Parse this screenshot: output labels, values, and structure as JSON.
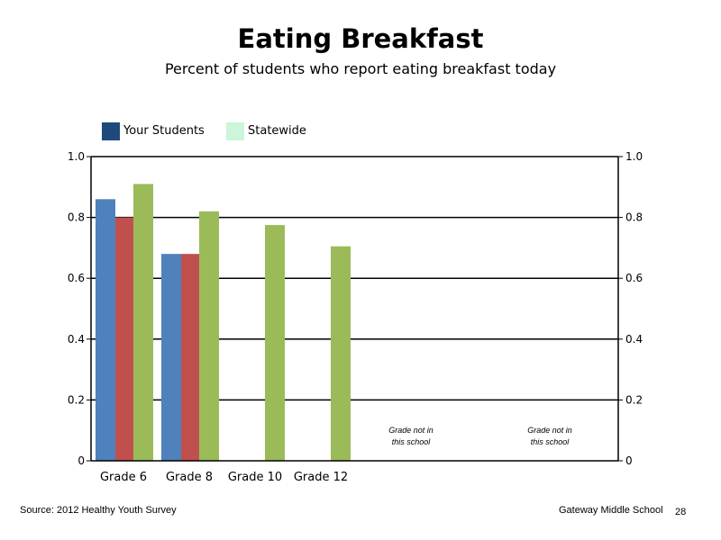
{
  "chart_data": {
    "type": "bar",
    "title": "Eating Breakfast",
    "subtitle": "Percent of students who report eating breakfast today",
    "categories": [
      "Grade 6",
      "Grade 8",
      "Grade 10",
      "Grade 12"
    ],
    "series": [
      {
        "name": "Your Students",
        "values": [
          0.86,
          0.68,
          null,
          null
        ],
        "color": "#4F81BD"
      },
      {
        "name": "",
        "values": [
          0.8,
          0.68,
          null,
          null
        ],
        "color": "#C0504D"
      },
      {
        "name": "Statewide",
        "values": [
          0.91,
          0.82,
          0.775,
          0.705
        ],
        "color": "#9BBB59"
      }
    ],
    "ylim": [
      0,
      1.0
    ],
    "yticks": [
      "0",
      "0.2",
      "0.4",
      "0.6",
      "0.8",
      "1.0"
    ],
    "ytick_values": [
      0,
      0.2,
      0.4,
      0.6,
      0.8,
      1.0
    ],
    "secondary_yaxis": true,
    "grid": true,
    "legend_position": "top-left",
    "notes": [
      {
        "line1": "Grade not in",
        "line2": "this school"
      },
      {
        "line1": "Grade not in",
        "line2": "this school"
      }
    ]
  },
  "legend": [
    {
      "label": "Your Students",
      "color": "#1F497D"
    },
    {
      "label": "Statewide",
      "color": "#CCF5D9"
    }
  ],
  "footer": {
    "source": "Source: 2012 Healthy Youth Survey",
    "school": "Gateway Middle  School",
    "page_number": "28"
  }
}
